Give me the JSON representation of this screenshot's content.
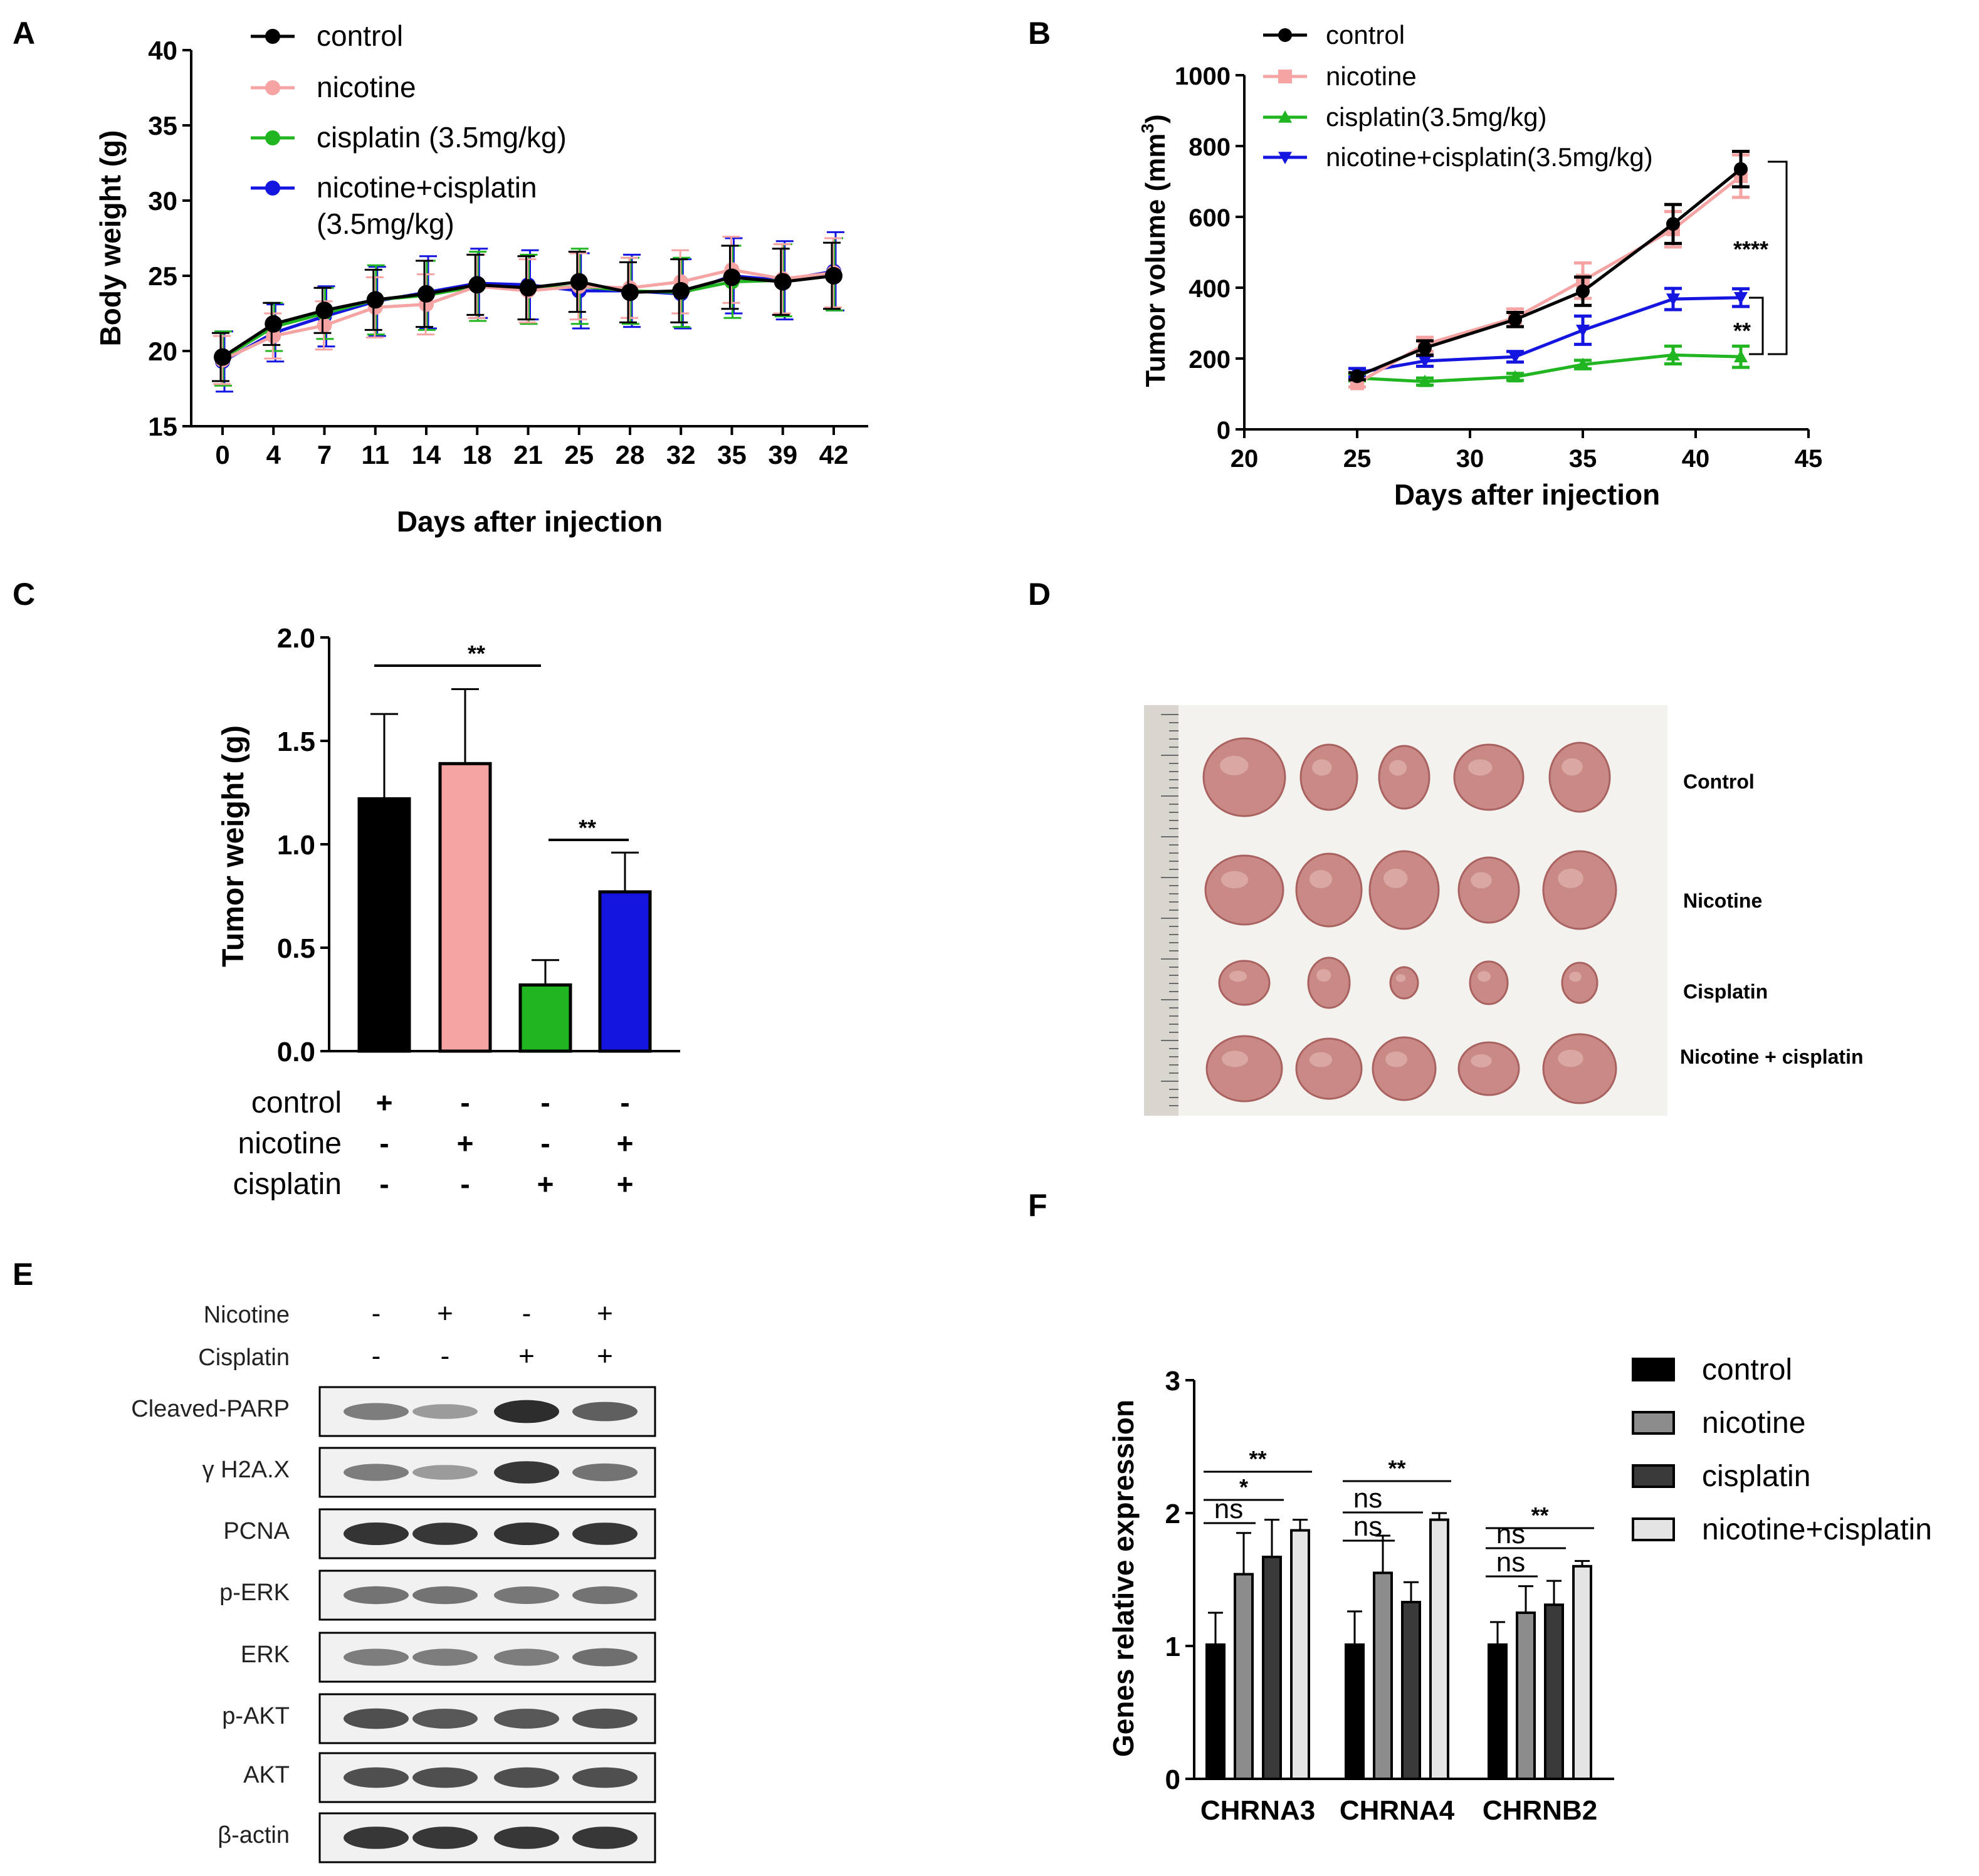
{
  "colors": {
    "control": "#000000",
    "nicotine": "#f5a3a3",
    "cisplatin": "#21b521",
    "combo": "#1515e0",
    "gray_dark": "#3a3a3a",
    "gray_mid": "#8c8c8c",
    "gray_light": "#e4e4e4",
    "tumor": "#c98a86",
    "photo_bg": "#f4f2ee"
  },
  "panel_labels": {
    "A": "A",
    "B": "B",
    "C": "C",
    "D": "D",
    "E": "E",
    "F": "F"
  },
  "chart_data": [
    {
      "id": "A",
      "type": "line",
      "title": "",
      "xlabel": "Days after injection",
      "ylabel": "Body weight (g)",
      "categories": [
        "0",
        "4",
        "7",
        "11",
        "14",
        "18",
        "21",
        "25",
        "28",
        "32",
        "35",
        "39",
        "42"
      ],
      "ylim": [
        15,
        40
      ],
      "yticks": [
        15,
        20,
        25,
        30,
        35,
        40
      ],
      "legend": [
        "control",
        "nicotine",
        "cisplatin (3.5mg/kg)",
        "nicotine+cisplatin\n(3.5mg/kg)"
      ],
      "legend_lines": [
        [
          "control"
        ],
        [
          "nicotine"
        ],
        [
          "cisplatin (3.5mg/kg)"
        ],
        [
          "nicotine+cisplatin",
          "(3.5mg/kg)"
        ]
      ],
      "series": [
        {
          "name": "control",
          "values": [
            19.6,
            21.8,
            22.7,
            23.4,
            23.8,
            24.4,
            24.2,
            24.6,
            23.9,
            24.0,
            24.9,
            24.6,
            25.0
          ],
          "err": [
            1.6,
            1.4,
            1.5,
            2.0,
            2.2,
            2.0,
            2.1,
            2.0,
            2.0,
            2.1,
            2.1,
            2.2,
            2.2
          ]
        },
        {
          "name": "nicotine",
          "values": [
            19.4,
            21.0,
            21.7,
            22.9,
            23.1,
            24.3,
            24.0,
            24.3,
            24.2,
            24.6,
            25.4,
            24.8,
            25.2
          ],
          "err": [
            1.6,
            1.5,
            1.6,
            2.0,
            2.0,
            2.1,
            2.1,
            2.2,
            2.0,
            2.1,
            2.2,
            2.3,
            2.3
          ]
        },
        {
          "name": "cisplatin (3.5mg/kg)",
          "values": [
            19.5,
            21.6,
            22.5,
            23.4,
            23.7,
            24.3,
            24.1,
            24.3,
            24.0,
            23.9,
            24.6,
            24.7,
            25.1
          ],
          "err": [
            1.8,
            1.6,
            1.7,
            2.3,
            2.3,
            2.3,
            2.3,
            2.5,
            2.2,
            2.3,
            2.4,
            2.4,
            2.4
          ]
        },
        {
          "name": "nicotine+cisplatin (3.5mg/kg)",
          "values": [
            19.3,
            21.2,
            22.3,
            23.3,
            23.9,
            24.5,
            24.4,
            24.0,
            24.0,
            23.8,
            25.0,
            24.7,
            25.3
          ],
          "err": [
            2.0,
            1.9,
            2.0,
            2.3,
            2.4,
            2.3,
            2.3,
            2.5,
            2.4,
            2.3,
            2.5,
            2.6,
            2.6
          ]
        }
      ]
    },
    {
      "id": "B",
      "type": "line",
      "title": "",
      "xlabel": "Days after injection",
      "ylabel_main": "Tumor volume (mm",
      "ylabel_sup": "3",
      "ylabel_tail": ")",
      "xlim": [
        20,
        45
      ],
      "xticks": [
        20,
        25,
        30,
        35,
        40,
        45
      ],
      "ylim": [
        0,
        1000
      ],
      "yticks": [
        0,
        200,
        400,
        600,
        800,
        1000
      ],
      "x": [
        25,
        28,
        32,
        35,
        39,
        42
      ],
      "legend": [
        "control",
        "nicotine",
        "cisplatin(3.5mg/kg)",
        "nicotine+cisplatin(3.5mg/kg)"
      ],
      "series": [
        {
          "name": "control",
          "values": [
            150,
            230,
            310,
            390,
            580,
            735
          ],
          "err": [
            10,
            20,
            20,
            40,
            55,
            50
          ]
        },
        {
          "name": "nicotine",
          "values": [
            130,
            240,
            315,
            420,
            565,
            715
          ],
          "err": [
            10,
            20,
            25,
            50,
            50,
            60
          ]
        },
        {
          "name": "cisplatin(3.5mg/kg)",
          "values": [
            145,
            135,
            148,
            183,
            210,
            205
          ],
          "err": [
            8,
            10,
            10,
            12,
            25,
            30
          ]
        },
        {
          "name": "nicotine+cisplatin(3.5mg/kg)",
          "values": [
            160,
            193,
            205,
            280,
            368,
            372
          ],
          "err": [
            12,
            15,
            15,
            40,
            30,
            25
          ]
        }
      ],
      "significance": [
        "****",
        "**"
      ]
    },
    {
      "id": "C",
      "type": "bar",
      "title": "",
      "ylabel": "Tumor weight (g)",
      "ylim": [
        0,
        2.0
      ],
      "yticks": [
        "0.0",
        "0.5",
        "1.0",
        "1.5",
        "2.0"
      ],
      "categories": [
        "control",
        "nicotine",
        "cisplatin",
        "nicotine+cisplatin"
      ],
      "values": [
        1.22,
        1.39,
        0.32,
        0.77
      ],
      "err": [
        0.41,
        0.36,
        0.12,
        0.19
      ],
      "significance": [
        "**",
        "**"
      ],
      "table_rows": [
        {
          "label": "control",
          "marks": [
            "+",
            "-",
            "-",
            "-"
          ]
        },
        {
          "label": "nicotine",
          "marks": [
            "-",
            "+",
            "-",
            "+"
          ]
        },
        {
          "label": "cisplatin",
          "marks": [
            "-",
            "-",
            "+",
            "+"
          ]
        }
      ]
    },
    {
      "id": "F",
      "type": "bar",
      "title": "",
      "ylabel": "Genes relative expression",
      "ylim": [
        0,
        3
      ],
      "yticks": [
        "0",
        "1",
        "2",
        "3"
      ],
      "categories": [
        "CHRNA3",
        "CHRNA4",
        "CHRNB2"
      ],
      "legend": [
        "control",
        "nicotine",
        "cisplatin",
        "nicotine+cisplatin"
      ],
      "series": [
        {
          "name": "control",
          "values": [
            1.01,
            1.01,
            1.01
          ],
          "err": [
            0.24,
            0.25,
            0.17
          ]
        },
        {
          "name": "nicotine",
          "values": [
            1.54,
            1.55,
            1.25
          ],
          "err": [
            0.31,
            0.28,
            0.2
          ]
        },
        {
          "name": "cisplatin",
          "values": [
            1.67,
            1.33,
            1.31
          ],
          "err": [
            0.28,
            0.15,
            0.18
          ]
        },
        {
          "name": "nicotine+cisplatin",
          "values": [
            1.87,
            1.95,
            1.6
          ],
          "err": [
            0.08,
            0.05,
            0.04
          ]
        }
      ],
      "significance": {
        "CHRNA3": [
          "ns",
          "*",
          "**"
        ],
        "CHRNA4": [
          "ns",
          "ns",
          "**"
        ],
        "CHRNB2": [
          "ns",
          "ns",
          "**"
        ]
      }
    }
  ],
  "panel_d": {
    "row_labels": [
      "Control",
      "Nicotine",
      "Cisplatin",
      "Nicotine + cisplatin"
    ]
  },
  "panel_e": {
    "header_rows": [
      {
        "label": "Nicotine",
        "marks": [
          "-",
          "+",
          "-",
          "+"
        ]
      },
      {
        "label": "Cisplatin",
        "marks": [
          "-",
          "-",
          "+",
          "+"
        ]
      }
    ],
    "blots": [
      {
        "label": "Cleaved-PARP",
        "intensity": [
          0.55,
          0.4,
          0.95,
          0.7
        ]
      },
      {
        "label": "γ H2A.X",
        "intensity": [
          0.55,
          0.4,
          0.9,
          0.6
        ]
      },
      {
        "label": "PCNA",
        "intensity": [
          0.92,
          0.9,
          0.92,
          0.9
        ]
      },
      {
        "label": "p-ERK",
        "intensity": [
          0.6,
          0.6,
          0.58,
          0.6
        ]
      },
      {
        "label": "ERK",
        "intensity": [
          0.55,
          0.55,
          0.55,
          0.62
        ]
      },
      {
        "label": "p-AKT",
        "intensity": [
          0.78,
          0.74,
          0.74,
          0.76
        ]
      },
      {
        "label": "AKT",
        "intensity": [
          0.78,
          0.78,
          0.78,
          0.78
        ]
      },
      {
        "label": "β-actin",
        "intensity": [
          0.9,
          0.9,
          0.9,
          0.9
        ]
      }
    ]
  }
}
